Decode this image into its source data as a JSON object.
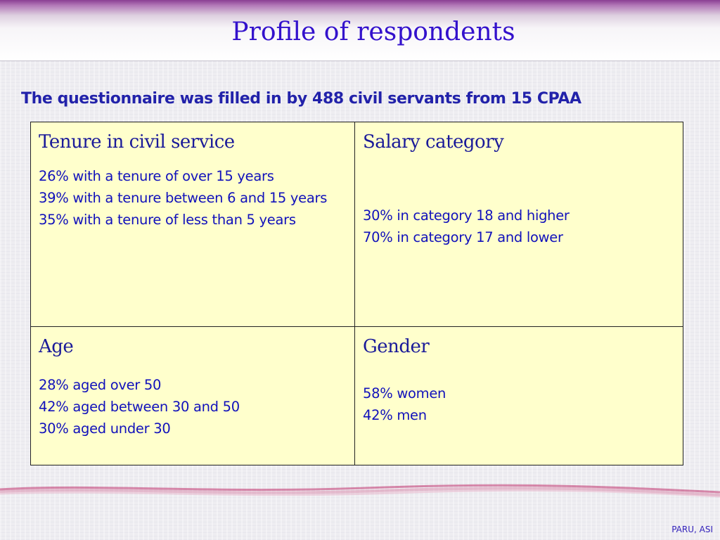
{
  "slide": {
    "title": "Profile of respondents",
    "subtitle": "The questionnaire was filled in by 488 civil servants from 15 CPAA",
    "footer": "PARU, ASI"
  },
  "cells": [
    {
      "heading": "Tenure in civil service",
      "lines": [
        "26% with a tenure of over 15 years",
        "39% with a tenure between 6 and 15 years",
        "35% with a tenure of less than 5 years"
      ]
    },
    {
      "heading": "Salary category",
      "lines": [
        "30% in category 18 and higher",
        "70% in category 17 and lower"
      ]
    },
    {
      "heading": "Age",
      "lines": [
        "28% aged over 50",
        "42% aged between 30 and 50",
        "30% aged under 30"
      ]
    },
    {
      "heading": "Gender",
      "lines": [
        "58% women",
        "42% men"
      ]
    }
  ],
  "colors": {
    "title": "#3311cc",
    "text": "#1111bb",
    "table_fill": "#ffffcc",
    "band": "#8a3e93",
    "wave": "#c0306b"
  }
}
